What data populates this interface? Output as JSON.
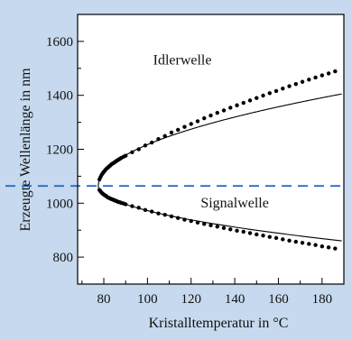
{
  "chart_data": {
    "type": "scatter",
    "title": "",
    "xlabel": "Kristalltemperatur in °C",
    "ylabel": "Erzeugte Wellenlänge in nm",
    "xlim": [
      68,
      190
    ],
    "ylim": [
      700,
      1700
    ],
    "xticks": [
      80,
      100,
      120,
      140,
      160,
      180
    ],
    "yticks": [
      800,
      1000,
      1200,
      1400,
      1600
    ],
    "grid": false,
    "background": "#c7d9ee",
    "plot_background": "#ffffff",
    "reference_line": {
      "y": 1064,
      "style": "dashed",
      "color": "#2a6ac8"
    },
    "annotations": [
      {
        "text": "Idlerwelle",
        "x": 116,
        "y": 1515
      },
      {
        "text": "Signalwelle",
        "x": 140,
        "y": 985
      }
    ],
    "fit_curve": {
      "description": "continuous black curve",
      "vertex_temperature": 77.5,
      "degenerate_wavelength": 1064,
      "coeff_upper": 32.3,
      "coeff_lower": 19.3
    },
    "series": [
      {
        "points": [
          [
            78,
            1088
          ],
          [
            78.5,
            1097
          ],
          [
            79,
            1105
          ],
          [
            79.5,
            1111
          ],
          [
            80,
            1116
          ],
          [
            80.5,
            1121
          ],
          [
            81,
            1126
          ],
          [
            81.5,
            1130
          ],
          [
            82,
            1133
          ],
          [
            82.5,
            1137
          ],
          [
            83,
            1140
          ],
          [
            83.5,
            1144
          ],
          [
            84,
            1147
          ],
          [
            84.5,
            1149
          ],
          [
            85,
            1152
          ],
          [
            85.5,
            1155
          ],
          [
            86,
            1158
          ],
          [
            86.5,
            1160
          ],
          [
            87,
            1163
          ],
          [
            87.5,
            1165
          ],
          [
            88,
            1168
          ],
          [
            89,
            1172
          ],
          [
            90,
            1176
          ],
          [
            93,
            1189
          ],
          [
            96,
            1200
          ],
          [
            99,
            1214
          ],
          [
            102,
            1225
          ],
          [
            105,
            1238
          ],
          [
            108,
            1249
          ],
          [
            111,
            1262
          ],
          [
            114,
            1272
          ],
          [
            117,
            1283
          ],
          [
            120,
            1294
          ],
          [
            123,
            1304
          ],
          [
            126,
            1315
          ],
          [
            129,
            1325
          ],
          [
            132,
            1335
          ],
          [
            135,
            1344
          ],
          [
            138,
            1354
          ],
          [
            141,
            1363
          ],
          [
            144,
            1372
          ],
          [
            147,
            1381
          ],
          [
            150,
            1390
          ],
          [
            153,
            1399
          ],
          [
            156,
            1408
          ],
          [
            159,
            1416
          ],
          [
            162,
            1425
          ],
          [
            165,
            1434
          ],
          [
            168,
            1442
          ],
          [
            171,
            1450
          ],
          [
            174,
            1458
          ],
          [
            177,
            1466
          ],
          [
            180,
            1474
          ],
          [
            183,
            1481
          ],
          [
            186,
            1489
          ],
          [
            78,
            1049
          ],
          [
            78.5,
            1044
          ],
          [
            79,
            1039
          ],
          [
            79.5,
            1035
          ],
          [
            80,
            1032
          ],
          [
            80.5,
            1029
          ],
          [
            81,
            1027
          ],
          [
            81.5,
            1023
          ],
          [
            82,
            1021
          ],
          [
            82.5,
            1019
          ],
          [
            83,
            1017
          ],
          [
            83.5,
            1015
          ],
          [
            84,
            1014
          ],
          [
            84.5,
            1012
          ],
          [
            85,
            1010
          ],
          [
            85.5,
            1009
          ],
          [
            86,
            1007
          ],
          [
            86.5,
            1005
          ],
          [
            87,
            1004
          ],
          [
            87.5,
            1003
          ],
          [
            88,
            1001
          ],
          [
            89,
            999
          ],
          [
            90,
            996
          ],
          [
            93,
            989
          ],
          [
            96,
            983
          ],
          [
            99,
            975
          ],
          [
            102,
            969
          ],
          [
            105,
            962
          ],
          [
            108,
            957
          ],
          [
            111,
            951
          ],
          [
            114,
            945
          ],
          [
            117,
            939
          ],
          [
            120,
            934
          ],
          [
            123,
            928
          ],
          [
            126,
            923
          ],
          [
            129,
            918
          ],
          [
            132,
            913
          ],
          [
            135,
            908
          ],
          [
            138,
            903
          ],
          [
            141,
            898
          ],
          [
            144,
            894
          ],
          [
            147,
            889
          ],
          [
            150,
            884
          ],
          [
            153,
            880
          ],
          [
            156,
            875
          ],
          [
            159,
            871
          ],
          [
            162,
            866
          ],
          [
            165,
            861
          ],
          [
            168,
            857
          ],
          [
            171,
            853
          ],
          [
            174,
            849
          ],
          [
            177,
            845
          ],
          [
            180,
            840
          ],
          [
            183,
            836
          ],
          [
            186,
            832
          ]
        ]
      }
    ]
  }
}
